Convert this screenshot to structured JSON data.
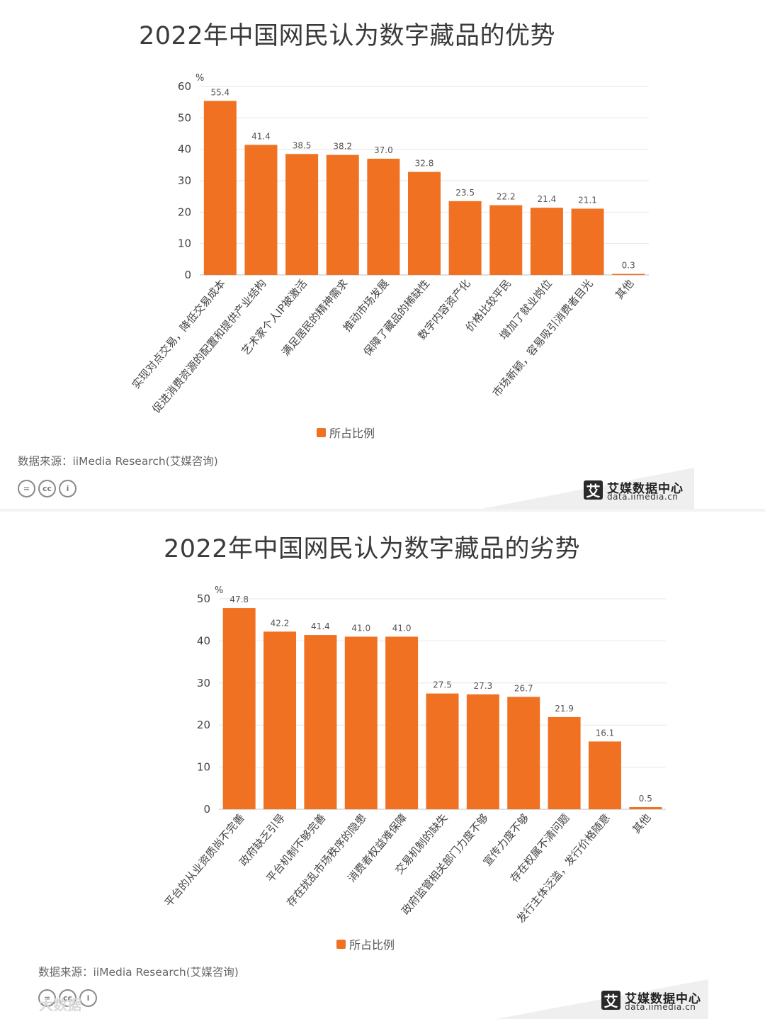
{
  "brand": {
    "name": "艾媒数据中心",
    "url": "data.iimedia.cn",
    "logo_char": "艾"
  },
  "cc_icons": [
    "=",
    "cc",
    "i"
  ],
  "watermark": "大数据",
  "colors": {
    "bar": "#f07122",
    "grid": "#e6e6e6",
    "axis": "#bfbfbf"
  },
  "charts": [
    {
      "title": "2022年中国网民认为数字藏品的优势",
      "legend": "所占比例",
      "source": "数据来源：iiMedia Research(艾媒咨询)"
    },
    {
      "title": "2022年中国网民认为数字藏品的劣势",
      "legend": "所占比例",
      "source": "数据来源：iiMedia Research(艾媒咨询)"
    }
  ],
  "chart_data": [
    {
      "type": "bar",
      "title": "2022年中国网民认为数字藏品的优势",
      "ylabel": "%",
      "ylim": [
        0,
        60
      ],
      "yticks": [
        0,
        10,
        20,
        30,
        40,
        50,
        60
      ],
      "grid": true,
      "legend_position": "bottom",
      "categories": [
        "实现对点交易，降低交易成本",
        "促进消费资源的配置和提供产业结构",
        "艺术家个人IP被激活",
        "满足居民的精神需求",
        "推动市场发展",
        "保障了藏品的稀缺性",
        "数字内容资产化",
        "价格比较平民",
        "增加了就业岗位",
        "市场新颖，容易吸引消费者目光",
        "其他"
      ],
      "series": [
        {
          "name": "所占比例",
          "values": [
            55.4,
            41.4,
            38.5,
            38.2,
            37.0,
            32.8,
            23.5,
            22.2,
            21.4,
            21.1,
            0.3
          ],
          "labels": [
            "55.4",
            "41.4",
            "38.5",
            "38.2",
            "37.0",
            "32.8",
            "23.5",
            "22.2",
            "21.4",
            "21.1",
            "0.3"
          ]
        }
      ]
    },
    {
      "type": "bar",
      "title": "2022年中国网民认为数字藏品的劣势",
      "ylabel": "%",
      "ylim": [
        0,
        50
      ],
      "yticks": [
        0,
        10,
        20,
        30,
        40,
        50
      ],
      "grid": true,
      "legend_position": "bottom",
      "categories": [
        "平台的从业资质尚不完善",
        "政府缺乏引导",
        "平台机制不够完善",
        "存在扰乱市场秩序的隐患",
        "消费者权益难保障",
        "交易机制的缺失",
        "政府监管相关部门力度不够",
        "宣传力度不够",
        "存在权属不清问题",
        "发行主体泛滥，发行价格随意",
        "其他"
      ],
      "series": [
        {
          "name": "所占比例",
          "values": [
            47.8,
            42.2,
            41.4,
            41.0,
            41.0,
            27.5,
            27.3,
            26.7,
            21.9,
            16.1,
            0.5
          ],
          "labels": [
            "47.8",
            "42.2",
            "41.4",
            "41.0",
            "41.0",
            "27.5",
            "27.3",
            "26.7",
            "21.9",
            "16.1",
            "0.5"
          ]
        }
      ]
    }
  ]
}
